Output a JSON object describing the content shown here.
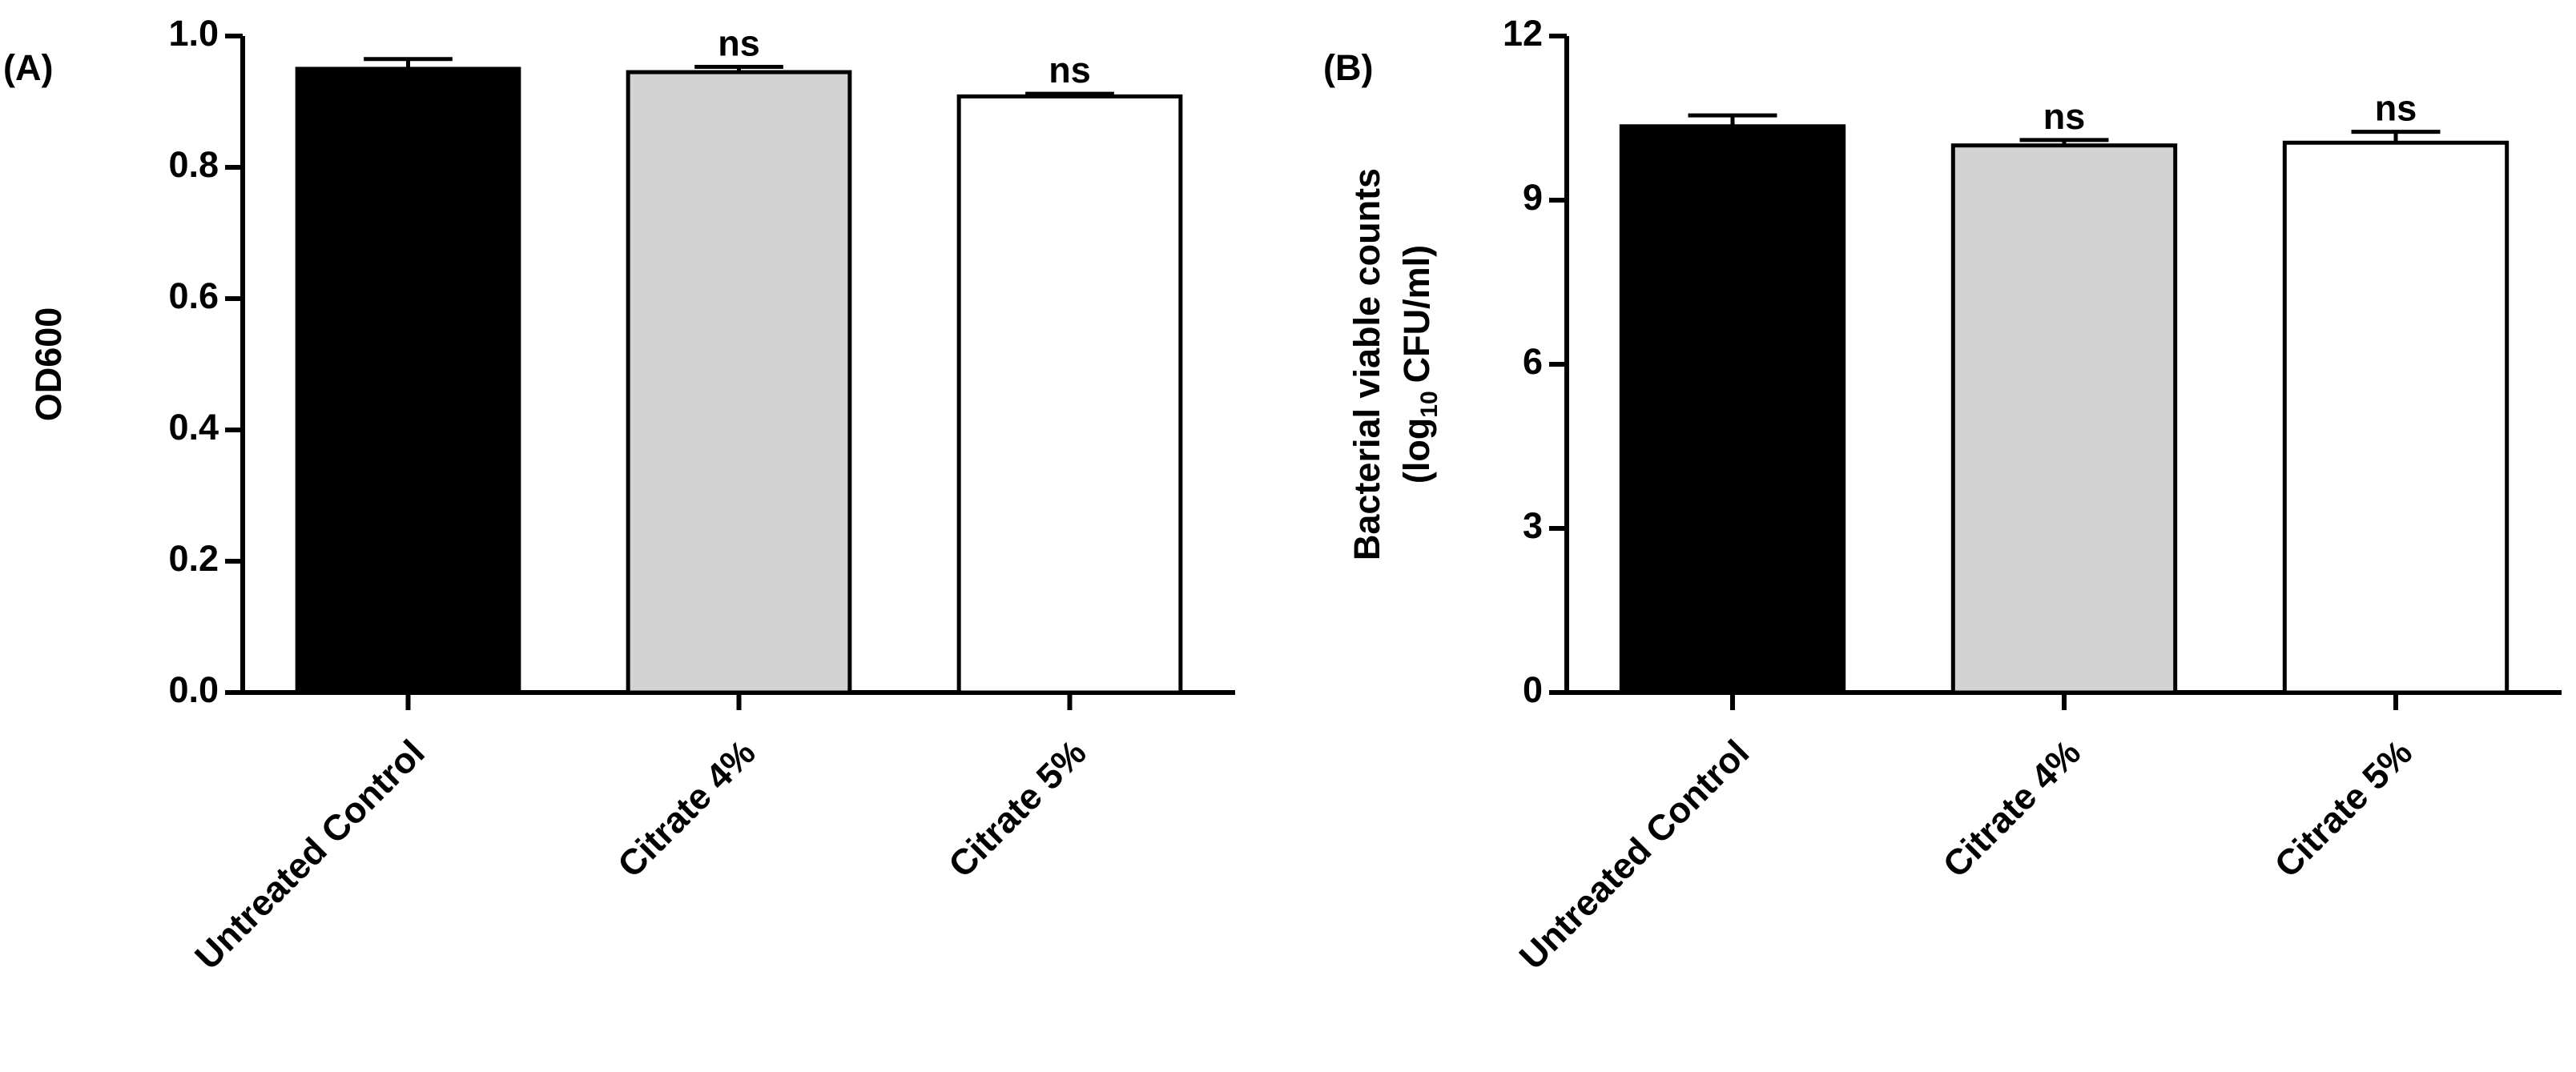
{
  "chart_data": [
    {
      "type": "bar",
      "panel_label": "(A)",
      "ylabel": "OD600",
      "categories": [
        "Untreated Control",
        "Citrate 4%",
        "Citrate 5%"
      ],
      "values": [
        0.95,
        0.945,
        0.908
      ],
      "errors": [
        0.015,
        0.008,
        0.004
      ],
      "annotations": [
        null,
        "ns",
        "ns"
      ],
      "colors": [
        "#000000",
        "#d3d3d3",
        "#ffffff"
      ],
      "ylim": [
        0,
        1
      ],
      "yticks": [
        {
          "value": 0,
          "label": "0.0"
        },
        0.2,
        0.4,
        0.6,
        0.8,
        {
          "value": 1,
          "label": "1.0"
        }
      ]
    },
    {
      "type": "bar",
      "panel_label": "(B)",
      "ylabel": {
        "line1": "Bacterial viable counts",
        "line2": [
          "(log",
          "10",
          "CFU/ml)"
        ]
      },
      "categories": [
        "Untreated Control",
        "Citrate 4%",
        "Citrate 5%"
      ],
      "values": [
        10.35,
        10.0,
        10.05
      ],
      "errors": [
        0.2,
        0.1,
        0.2
      ],
      "annotations": [
        null,
        "ns",
        "ns"
      ],
      "colors": [
        "#000000",
        "#d3d3d3",
        "#ffffff"
      ],
      "ylim": [
        0,
        12
      ],
      "yticks": [
        0,
        3,
        6,
        9,
        12
      ]
    }
  ]
}
